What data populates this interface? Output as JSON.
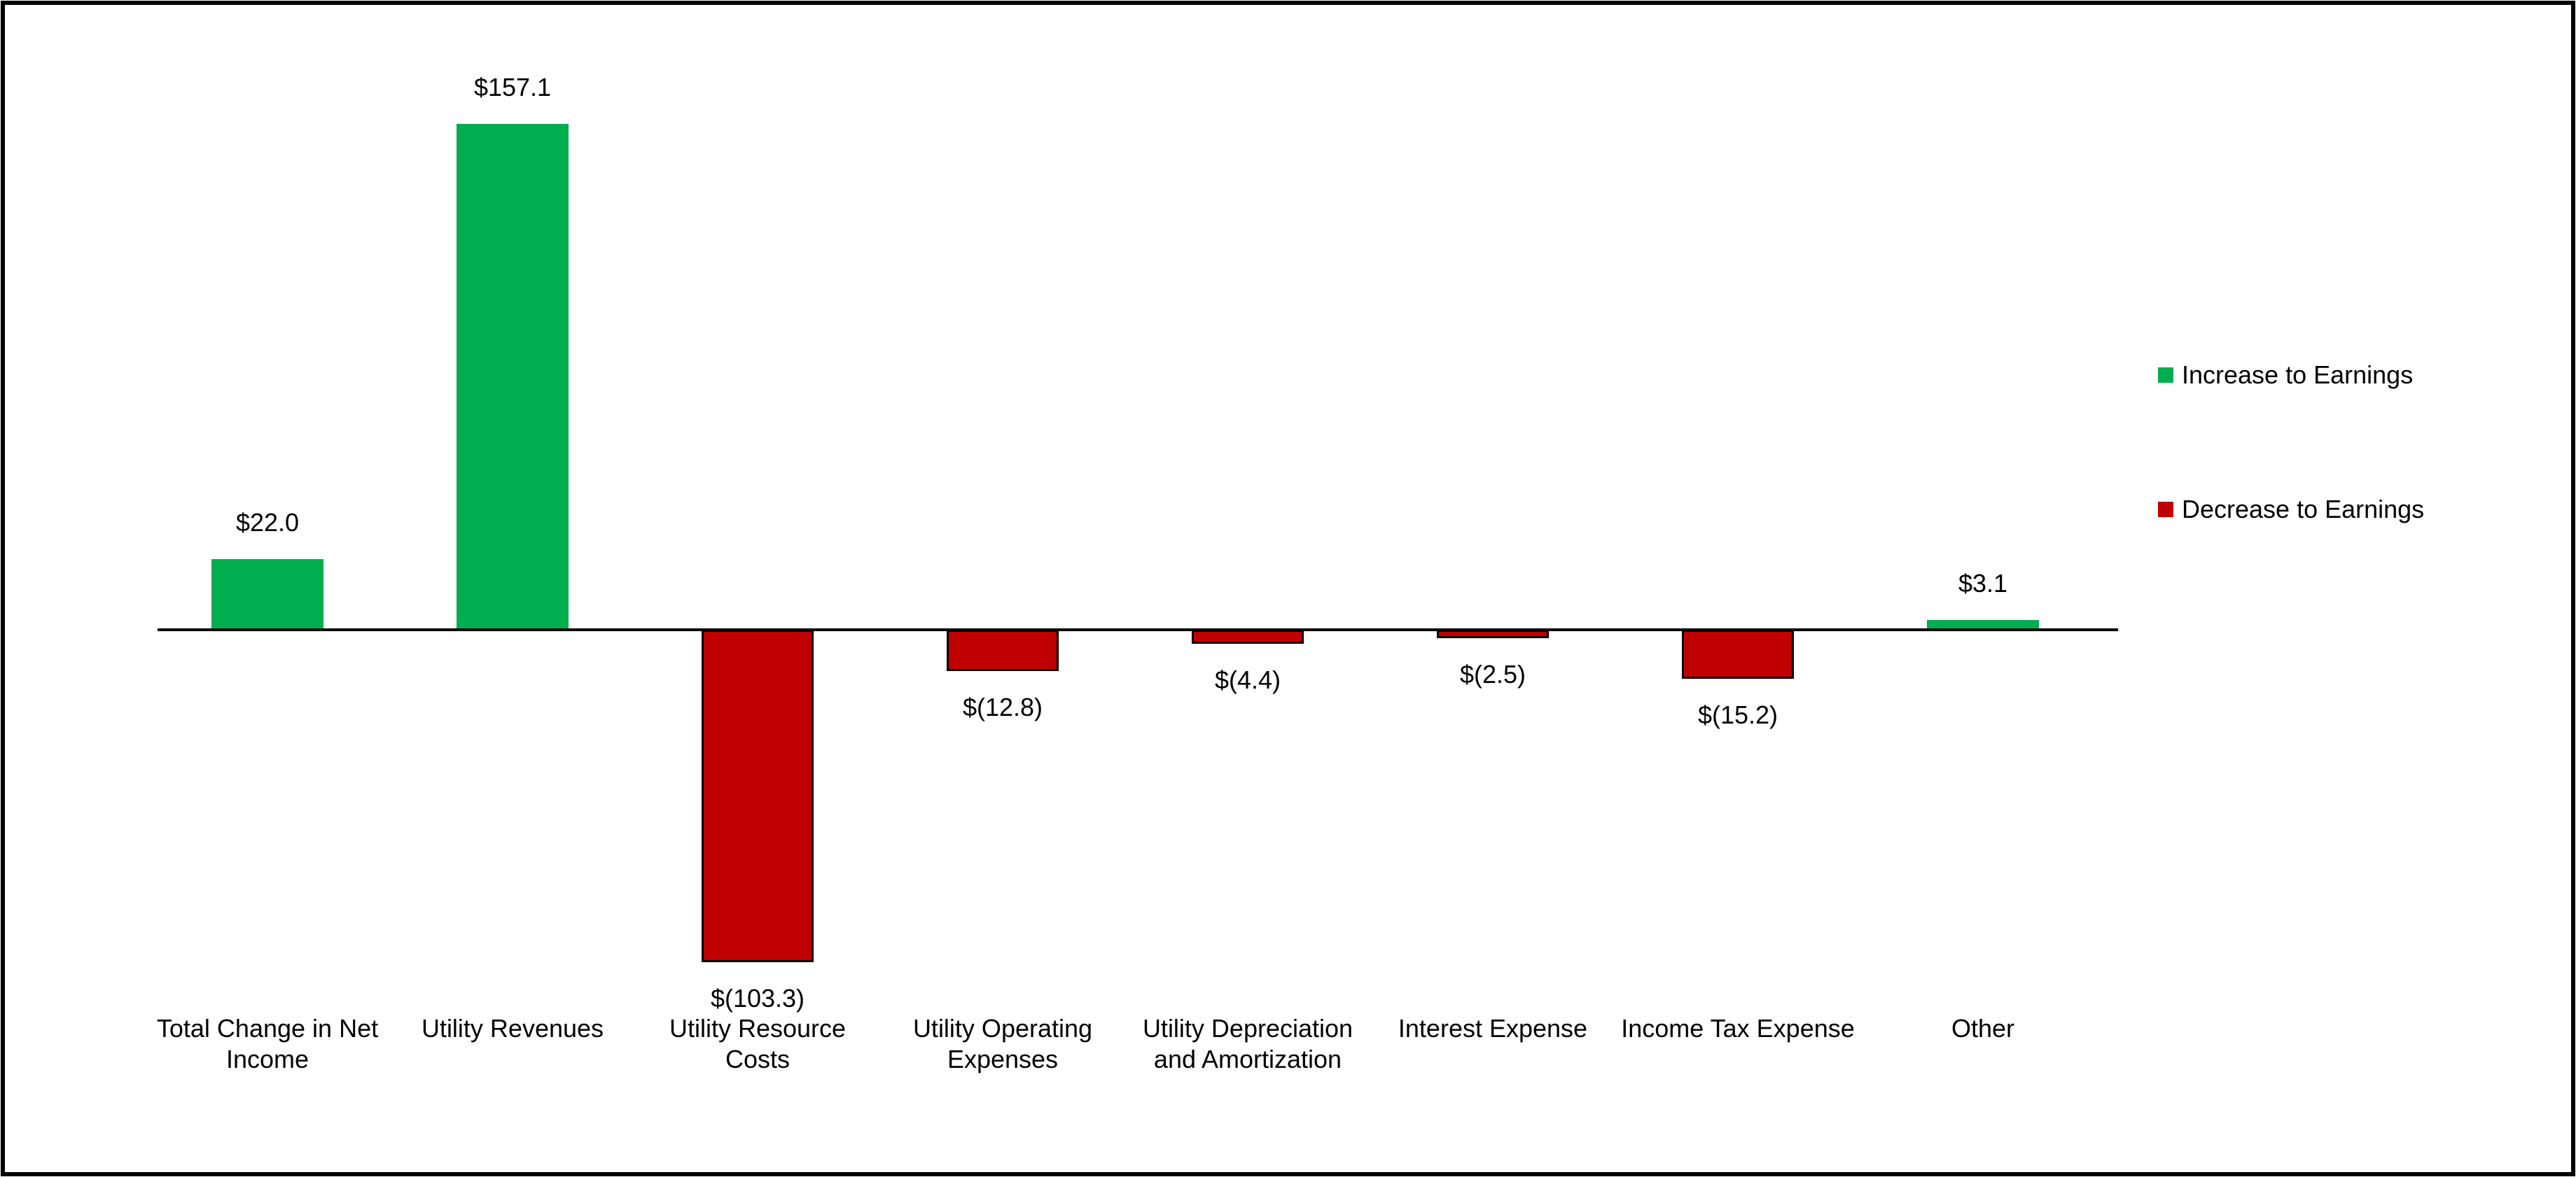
{
  "chart_data": {
    "type": "bar",
    "orientation": "vertical",
    "title": "",
    "xlabel": "",
    "ylabel": "",
    "units": "millions of dollars",
    "grid": false,
    "y_axis_visible": false,
    "baseline_value": 0,
    "ylim": [
      -120,
      170
    ],
    "legend_position": "right",
    "categories": [
      "Total Change in Net Income",
      "Utility Revenues",
      "Utility Resource Costs",
      "Utility Operating Expenses",
      "Utility Depreciation and Amortization",
      "Interest Expense",
      "Income Tax Expense",
      "Other"
    ],
    "values": [
      22.0,
      157.1,
      -103.3,
      -12.8,
      -4.4,
      -2.5,
      -15.2,
      3.1
    ],
    "items": [
      {
        "category": "Total Change in Net Income",
        "category_lines": "Total Change in Net\nIncome",
        "value": 22.0,
        "label": "$22.0",
        "type": "increase"
      },
      {
        "category": "Utility Revenues",
        "category_lines": "Utility Revenues",
        "value": 157.1,
        "label": "$157.1",
        "type": "increase"
      },
      {
        "category": "Utility Resource Costs",
        "category_lines": "Utility Resource\nCosts",
        "value": -103.3,
        "label": "$(103.3)",
        "type": "decrease"
      },
      {
        "category": "Utility Operating Expenses",
        "category_lines": "Utility Operating\nExpenses",
        "value": -12.8,
        "label": "$(12.8)",
        "type": "decrease"
      },
      {
        "category": "Utility Depreciation and Amortization",
        "category_lines": "Utility Depreciation\nand Amortization",
        "value": -4.4,
        "label": "$(4.4)",
        "type": "decrease"
      },
      {
        "category": "Interest Expense",
        "category_lines": "Interest Expense",
        "value": -2.5,
        "label": "$(2.5)",
        "type": "decrease"
      },
      {
        "category": "Income Tax Expense",
        "category_lines": "Income Tax Expense",
        "value": -15.2,
        "label": "$(15.2)",
        "type": "decrease"
      },
      {
        "category": "Other",
        "category_lines": "Other",
        "value": 3.1,
        "label": "$3.1",
        "type": "increase"
      }
    ],
    "legend": [
      {
        "label": "Increase to Earnings",
        "type": "increase",
        "color": "#00AE50"
      },
      {
        "label": "Decrease to Earnings",
        "type": "decrease",
        "color": "#C00000"
      }
    ],
    "colors": {
      "increase": "#00AE50",
      "decrease": "#C00000",
      "axis": "#000000",
      "text": "#000000",
      "frame": "#000000",
      "background": "#FFFFFF"
    }
  }
}
